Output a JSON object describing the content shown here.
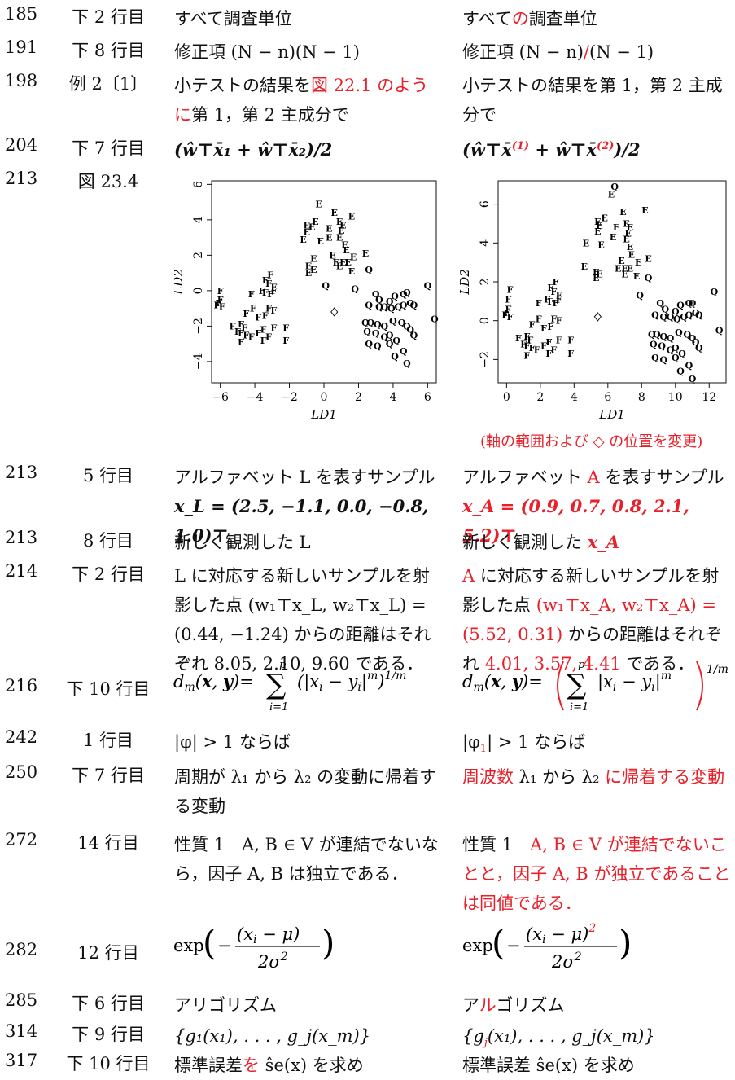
{
  "rows": [
    {
      "page": "185",
      "line": "下 2 行目",
      "before": "すべて調査単位",
      "after_a": "すべて",
      "after_r": "の",
      "after_b": "調査単位"
    },
    {
      "page": "191",
      "line": "下 8 行目",
      "before": "修正項 (N − n)(N − 1)",
      "after_a": "修正項 (N − n)",
      "after_r": "/",
      "after_b": "(N − 1)"
    },
    {
      "page": "198",
      "line": "例 2〔1〕",
      "before_a": "小テストの結果を",
      "before_r": "図 22.1 のように",
      "before_b": "第 1，第 2 主成分で",
      "after": "小テストの結果を第 1，第 2 主成分で"
    },
    {
      "page": "204",
      "line": "下 7 行目",
      "before": "(ŵ⊤x̄₁ + ŵ⊤x̄₂)/2",
      "after_a": "(ŵ⊤x̄",
      "after_r1": "(1)",
      "after_m": " + ŵ⊤x̄",
      "after_r2": "(2)",
      "after_b": ")/2"
    },
    {
      "page": "213",
      "line": "図 23.4"
    },
    {
      "page": "213",
      "line": "5 行目",
      "before_1": "アルファベット L を表すサンプル",
      "before_2": "x_L = (2.5, −1.1, 0.0, −0.8, 1.0)⊤",
      "after_1a": "アルファベット ",
      "after_1r": "A",
      "after_1b": " を表すサンプル",
      "after_2": "x_A = (0.9, 0.7, 0.8, 2.1, 5.2)⊤"
    },
    {
      "page": "213",
      "line": "8 行目",
      "before": "新しく観測した L",
      "after_a": "新しく観測した ",
      "after_r": "x_A"
    },
    {
      "page": "214",
      "line": "下 2 行目",
      "before": "L に対応する新しいサンプルを射影した点 (w₁⊤x_L, w₂⊤x_L) = (0.44, −1.24) からの距離はそれぞれ 8.05, 2.10, 9.60 である．",
      "after_r1": "A",
      "after_b1": " に対応する新しいサンプルを射影した点 ",
      "after_r2": "(w₁⊤x_A, w₂⊤x_A) = (5.52, 0.31)",
      "after_b2": " からの距離はそれぞれ ",
      "after_r3": "4.01, 3.57, 4.41",
      "after_b3": " である．"
    },
    {
      "page": "216",
      "line": "下 10 行目"
    },
    {
      "page": "242",
      "line": "1 行目",
      "before": "|φ| > 1 ならば",
      "after_a": "|φ",
      "after_r": "1",
      "after_b": "| > 1 ならば"
    },
    {
      "page": "250",
      "line": "下 7 行目",
      "before": "周期が λ₁ から λ₂ の変動に帰着する変動",
      "after_r1": "周波数",
      "after_b": " λ₁ から λ₂ ",
      "after_r2": "に帰着する変動"
    },
    {
      "page": "272",
      "line": "14 行目",
      "before": "性質 1　A, B ∈ V が連結でないなら，因子 A, B は独立である．",
      "after_a": "性質 1　",
      "after_r": "A, B ∈ V が連結でないことと，因子 A, B が独立であることは同値である．"
    },
    {
      "page": "282",
      "line": "12 行目"
    },
    {
      "page": "285",
      "line": "下 6 行目",
      "before": "アリゴリズム",
      "after_a": "ア",
      "after_r": "ル",
      "after_b": "ゴリズム"
    },
    {
      "page": "314",
      "line": "下 9 行目",
      "before": "{g₁(x₁), . . . , g_j(x_m)}",
      "after_a": "{g",
      "after_r": "j",
      "after_b": "(x₁), . . . , g_j(x_m)}"
    },
    {
      "page": "317",
      "line": "下 10 行目",
      "before_a": "標準誤差",
      "before_r": "を",
      "before_b": " ŝe(x) を求め",
      "after": "標準誤差 ŝe(x) を求め"
    }
  ],
  "caption": "(軸の範囲および ◇ の位置を変更)",
  "chart_data": [
    {
      "type": "scatter",
      "title": "",
      "xlabel": "LD1",
      "ylabel": "LD2",
      "xlim": [
        -6.5,
        6.5
      ],
      "ylim": [
        -5.2,
        6.2
      ],
      "xticks": [
        "−6",
        "−4",
        "−2",
        "0",
        "2",
        "4",
        "6"
      ],
      "yticks": [
        "−4",
        "−2",
        "0",
        "2",
        "4",
        "6"
      ],
      "series": [
        {
          "name": "E",
          "marker": "E",
          "points": [
            [
              -0.3,
              4.9
            ],
            [
              0.6,
              4.4
            ],
            [
              1.6,
              4.2
            ],
            [
              -1,
              3.7
            ],
            [
              -0.5,
              3.9
            ],
            [
              -0.7,
              3.6
            ],
            [
              0.3,
              3.5
            ],
            [
              -1,
              3.3
            ],
            [
              0.9,
              3.9
            ],
            [
              1.1,
              3.7
            ],
            [
              1,
              3.4
            ],
            [
              0.3,
              3.0
            ],
            [
              0.9,
              3.0
            ],
            [
              -1.2,
              2.9
            ],
            [
              -0.2,
              2.8
            ],
            [
              1.2,
              2.6
            ],
            [
              1.3,
              2.3
            ],
            [
              2.4,
              2.1
            ],
            [
              0.5,
              2.0
            ],
            [
              1.7,
              1.9
            ],
            [
              -0.6,
              1.8
            ],
            [
              0.7,
              1.6
            ],
            [
              1.1,
              1.6
            ],
            [
              1.4,
              1.6
            ],
            [
              -0.9,
              1.4
            ],
            [
              -0.6,
              1.2
            ],
            [
              0.9,
              1.4
            ],
            [
              -0.9,
              1.0
            ],
            [
              1.6,
              1.1
            ]
          ]
        },
        {
          "name": "Q",
          "marker": "Q",
          "points": [
            [
              0.1,
              0.3
            ],
            [
              2.6,
              1.2
            ],
            [
              6,
              0.3
            ],
            [
              1.8,
              0.1
            ],
            [
              3,
              -0.2
            ],
            [
              3.2,
              -0.5
            ],
            [
              4.1,
              -0.3
            ],
            [
              4.6,
              -0.2
            ],
            [
              4.8,
              -0.1
            ],
            [
              2.6,
              -0.8
            ],
            [
              3.2,
              -0.9
            ],
            [
              3.5,
              -0.9
            ],
            [
              3.9,
              -1
            ],
            [
              4.3,
              -0.9
            ],
            [
              4.6,
              -0.8
            ],
            [
              5,
              -0.7
            ],
            [
              5.2,
              -0.8
            ],
            [
              3.8,
              -0.6
            ],
            [
              6.4,
              -1.6
            ],
            [
              2.4,
              -1.8
            ],
            [
              2.7,
              -1.8
            ],
            [
              3.1,
              -1.9
            ],
            [
              3.5,
              -2
            ],
            [
              4.0,
              -1.7
            ],
            [
              4.5,
              -1.8
            ],
            [
              4.8,
              -2.0
            ],
            [
              5,
              -2.2
            ],
            [
              2.5,
              -2.3
            ],
            [
              3,
              -2.4
            ],
            [
              3.5,
              -2.6
            ],
            [
              3.8,
              -2.5
            ],
            [
              2.6,
              -3
            ],
            [
              3.1,
              -3.1
            ],
            [
              3.8,
              -3
            ],
            [
              4.2,
              -2.8
            ],
            [
              4.6,
              -3.4
            ],
            [
              4.1,
              -3.7
            ],
            [
              5.2,
              -2.5
            ],
            [
              4.8,
              -4.1
            ]
          ]
        },
        {
          "name": "F",
          "marker": "F",
          "points": [
            [
              -3.4,
              0.6
            ],
            [
              -3.1,
              0.9
            ],
            [
              -3.2,
              0.4
            ],
            [
              -2.9,
              0.2
            ],
            [
              -3.6,
              0.0
            ],
            [
              -3.4,
              -0.1
            ],
            [
              -3.1,
              -0.2
            ],
            [
              -2.9,
              0.0
            ],
            [
              -6.0,
              0.0
            ],
            [
              -4.2,
              -0.2
            ],
            [
              -6.0,
              -0.5
            ],
            [
              -6.1,
              -0.7
            ],
            [
              -6.2,
              -0.8
            ],
            [
              -5.9,
              -0.9
            ],
            [
              -4.1,
              -1.0
            ],
            [
              -3.2,
              -1.0
            ],
            [
              -2.9,
              -1.1
            ],
            [
              -4.5,
              -1.3
            ],
            [
              -3.8,
              -1.5
            ],
            [
              -3.4,
              -1.4
            ],
            [
              -4.8,
              -1.9
            ],
            [
              -5.3,
              -2.0
            ],
            [
              -4.6,
              -2.1
            ],
            [
              -3.5,
              -2.2
            ],
            [
              -2.9,
              -2.1
            ],
            [
              -5.0,
              -2.3
            ],
            [
              -4.8,
              -2.4
            ],
            [
              -4.5,
              -2.5
            ],
            [
              -4.2,
              -2.6
            ],
            [
              -3.8,
              -2.4
            ],
            [
              -3.5,
              -2.8
            ],
            [
              -3.2,
              -2.6
            ],
            [
              -2.2,
              -2.1
            ],
            [
              -4.8,
              -2.9
            ],
            [
              -2.2,
              -2.8
            ]
          ]
        },
        {
          "name": "◇",
          "marker": "diamond",
          "points": [
            [
              0.6,
              -1.2
            ]
          ]
        }
      ]
    },
    {
      "type": "scatter",
      "title": "",
      "xlabel": "LD1",
      "ylabel": "LD2",
      "xlim": [
        -0.5,
        13
      ],
      "ylim": [
        -3.2,
        7.2
      ],
      "xticks": [
        "0",
        "2",
        "4",
        "6",
        "8",
        "10",
        "12"
      ],
      "yticks": [
        "−2",
        "0",
        "2",
        "4",
        "6"
      ],
      "series": [
        {
          "name": "E",
          "marker": "E",
          "points": [
            [
              6.2,
              6.5
            ],
            [
              6.9,
              5.6
            ],
            [
              8.2,
              5.7
            ],
            [
              5.4,
              5.1
            ],
            [
              5.8,
              5.3
            ],
            [
              5.5,
              4.9
            ],
            [
              6.5,
              4.8
            ],
            [
              5.4,
              4.6
            ],
            [
              7.1,
              5.0
            ],
            [
              7.3,
              4.8
            ],
            [
              7.2,
              4.5
            ],
            [
              6.3,
              4.3
            ],
            [
              7.1,
              4.2
            ],
            [
              4.7,
              4.0
            ],
            [
              5.6,
              3.9
            ],
            [
              7.3,
              3.8
            ],
            [
              7.4,
              3.4
            ],
            [
              8.4,
              3.2
            ],
            [
              6.8,
              3.1
            ],
            [
              7.8,
              3.0
            ],
            [
              4.6,
              2.8
            ],
            [
              6.6,
              2.7
            ],
            [
              7.0,
              2.7
            ],
            [
              7.3,
              2.7
            ],
            [
              5.3,
              2.5
            ],
            [
              5.5,
              2.4
            ],
            [
              7.0,
              2.4
            ],
            [
              5.3,
              2.2
            ],
            [
              7.7,
              2.3
            ]
          ]
        },
        {
          "name": "Q",
          "marker": "Q",
          "points": [
            [
              6.4,
              6.9
            ],
            [
              8.4,
              2.2
            ],
            [
              12.3,
              1.5
            ],
            [
              7.9,
              1.3
            ],
            [
              9.1,
              0.9
            ],
            [
              9.4,
              0.6
            ],
            [
              10.3,
              0.8
            ],
            [
              10.8,
              0.9
            ],
            [
              11.0,
              0.9
            ],
            [
              8.8,
              0.3
            ],
            [
              9.3,
              0.2
            ],
            [
              9.7,
              0.2
            ],
            [
              10.1,
              0.1
            ],
            [
              10.5,
              0.2
            ],
            [
              10.8,
              0.3
            ],
            [
              11.2,
              0.4
            ],
            [
              11.4,
              0.3
            ],
            [
              10.0,
              0.5
            ],
            [
              12.6,
              -0.5
            ],
            [
              8.6,
              -0.7
            ],
            [
              8.9,
              -0.7
            ],
            [
              9.3,
              -0.8
            ],
            [
              9.7,
              -0.9
            ],
            [
              10.2,
              -0.6
            ],
            [
              10.7,
              -0.7
            ],
            [
              11.0,
              -0.9
            ],
            [
              11.2,
              -1.1
            ],
            [
              8.7,
              -1.2
            ],
            [
              9.2,
              -1.3
            ],
            [
              9.7,
              -1.5
            ],
            [
              10.0,
              -1.4
            ],
            [
              8.8,
              -1.9
            ],
            [
              9.3,
              -2.0
            ],
            [
              10.0,
              -1.9
            ],
            [
              10.4,
              -1.7
            ],
            [
              10.8,
              -2.3
            ],
            [
              10.3,
              -2.6
            ],
            [
              11.4,
              -1.4
            ],
            [
              11.0,
              -3.0
            ]
          ]
        },
        {
          "name": "F",
          "marker": "F",
          "points": [
            [
              0.2,
              1.6
            ],
            [
              2.6,
              1.7
            ],
            [
              2.9,
              2.0
            ],
            [
              2.8,
              1.5
            ],
            [
              3.1,
              1.3
            ],
            [
              2.4,
              1.1
            ],
            [
              2.6,
              1.0
            ],
            [
              2.9,
              0.9
            ],
            [
              3.1,
              1.1
            ],
            [
              0.1,
              1.1
            ],
            [
              1.9,
              0.9
            ],
            [
              0.1,
              0.6
            ],
            [
              0.0,
              0.4
            ],
            [
              -0.1,
              0.3
            ],
            [
              0.2,
              0.2
            ],
            [
              1.9,
              0.1
            ],
            [
              2.8,
              0.1
            ],
            [
              3.1,
              0.0
            ],
            [
              1.5,
              -0.2
            ],
            [
              2.2,
              -0.4
            ],
            [
              2.6,
              -0.3
            ],
            [
              1.2,
              -0.8
            ],
            [
              0.7,
              -0.9
            ],
            [
              1.4,
              -1.0
            ],
            [
              2.5,
              -1.1
            ],
            [
              3.1,
              -1.0
            ],
            [
              1.0,
              -1.2
            ],
            [
              1.2,
              -1.3
            ],
            [
              1.5,
              -1.4
            ],
            [
              1.8,
              -1.5
            ],
            [
              2.2,
              -1.3
            ],
            [
              2.5,
              -1.7
            ],
            [
              2.8,
              -1.5
            ],
            [
              3.8,
              -1.0
            ],
            [
              1.2,
              -1.8
            ],
            [
              3.8,
              -1.7
            ]
          ]
        },
        {
          "name": "◇",
          "marker": "diamond",
          "points": [
            [
              5.4,
              0.2
            ]
          ]
        }
      ]
    }
  ]
}
